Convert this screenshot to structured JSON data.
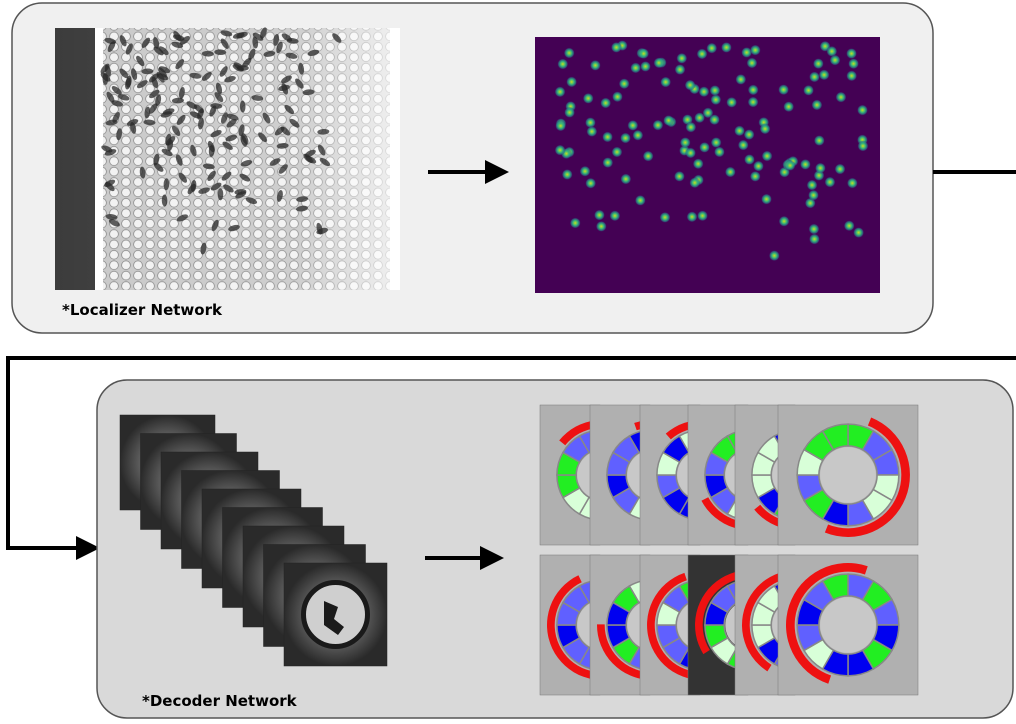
{
  "localizer": {
    "label": "*Localizer Network"
  },
  "decoder": {
    "label": "*Decoder Network"
  }
}
